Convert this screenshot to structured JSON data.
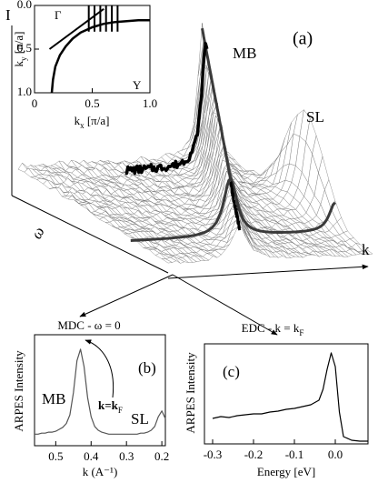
{
  "figure": {
    "panel_a": {
      "label": "(a)",
      "intensity_axis": "I",
      "energy_axis": "ω",
      "momentum_axis": "k",
      "peaks": [
        "MB",
        "SL"
      ]
    }
  },
  "chart_data": [
    {
      "type": "line",
      "x_label": [
        "k",
        "x",
        " [π/a]"
      ],
      "y_label": [
        "k",
        "y",
        " [π/a]"
      ],
      "annotations": [
        "Γ",
        "Y"
      ],
      "xlim": [
        0,
        1
      ],
      "ylim": [
        1,
        0
      ],
      "xticks": [
        0,
        0.5,
        {
          "value": 1,
          "label": "1.0"
        }
      ],
      "yticks": [
        {
          "value": 0,
          "label": "0.0"
        },
        0.5,
        {
          "value": 1,
          "label": "1.0"
        }
      ],
      "color": "#000000",
      "series": [
        {
          "x": [
            0.15,
            0.16,
            0.18,
            0.22,
            0.27,
            0.33,
            0.4,
            0.5,
            0.6,
            0.7,
            0.8,
            0.9,
            1.0
          ],
          "values": [
            1.0,
            0.85,
            0.7,
            0.57,
            0.47,
            0.38,
            0.31,
            0.25,
            0.21,
            0.19,
            0.18,
            0.17,
            0.17
          ]
        },
        {
          "x": [
            0.13,
            0.6
          ],
          "values": [
            0.5,
            0.04
          ]
        },
        {
          "x": [
            0.47,
            0.47
          ],
          "values": [
            0,
            0.3
          ]
        },
        {
          "x": [
            0.52,
            0.52
          ],
          "values": [
            0,
            0.3
          ]
        },
        {
          "x": [
            0.57,
            0.57
          ],
          "values": [
            0,
            0.3
          ]
        },
        {
          "x": [
            0.62,
            0.62
          ],
          "values": [
            0,
            0.3
          ]
        },
        {
          "x": [
            0.67,
            0.67
          ],
          "values": [
            0,
            0.3
          ]
        },
        {
          "x": [
            0.72,
            0.72
          ],
          "values": [
            0,
            0.3
          ]
        }
      ]
    },
    {
      "type": "line",
      "title": "MDC - ω = 0",
      "panel_label": "(b)",
      "x_label": "k (A⁻¹)",
      "y_label": "ARPES Intensity",
      "annotations": [
        "MB",
        "SL"
      ],
      "arrow_label": [
        "k=k",
        "F"
      ],
      "xlim": [
        0.56,
        0.19
      ],
      "ylim": [
        0,
        1.15
      ],
      "xticks": [
        0.5,
        0.4,
        0.3,
        0.2
      ],
      "color": "#555555",
      "series": [
        {
          "x": [
            0.56,
            0.55,
            0.54,
            0.53,
            0.52,
            0.51,
            0.5,
            0.49,
            0.48,
            0.47,
            0.46,
            0.45,
            0.44,
            0.43,
            0.42,
            0.41,
            0.4,
            0.39,
            0.38,
            0.37,
            0.36,
            0.35,
            0.34,
            0.33,
            0.32,
            0.31,
            0.3,
            0.29,
            0.28,
            0.27,
            0.26,
            0.25,
            0.24,
            0.23,
            0.22,
            0.21,
            0.2,
            0.19
          ],
          "values": [
            0.12,
            0.12,
            0.13,
            0.13,
            0.14,
            0.14,
            0.15,
            0.17,
            0.19,
            0.23,
            0.32,
            0.55,
            0.88,
            1.0,
            0.82,
            0.5,
            0.3,
            0.2,
            0.16,
            0.14,
            0.13,
            0.12,
            0.12,
            0.12,
            0.12,
            0.12,
            0.12,
            0.12,
            0.12,
            0.12,
            0.13,
            0.13,
            0.14,
            0.16,
            0.2,
            0.3,
            0.36,
            0.28
          ]
        }
      ]
    },
    {
      "type": "line",
      "title": [
        "EDC - k = k",
        "F"
      ],
      "panel_label": "(c)",
      "x_label": "Energy [eV]",
      "y_label": "ARPES Intensity",
      "xlim": [
        -0.32,
        0.08
      ],
      "ylim": [
        0,
        1.1
      ],
      "xticks": [
        -0.3,
        -0.2,
        -0.1,
        {
          "value": 0,
          "label": "0.0"
        }
      ],
      "color": "#000000",
      "series": [
        {
          "x": [
            -0.3,
            -0.28,
            -0.26,
            -0.24,
            -0.22,
            -0.2,
            -0.18,
            -0.16,
            -0.14,
            -0.12,
            -0.1,
            -0.08,
            -0.06,
            -0.04,
            -0.03,
            -0.02,
            -0.01,
            0,
            0.01,
            0.02,
            0.04,
            0.06,
            0.08
          ],
          "values": [
            0.28,
            0.3,
            0.29,
            0.31,
            0.32,
            0.33,
            0.33,
            0.35,
            0.36,
            0.38,
            0.39,
            0.41,
            0.43,
            0.48,
            0.6,
            0.82,
            1.0,
            0.85,
            0.35,
            0.08,
            0.04,
            0.03,
            0.03
          ]
        }
      ]
    }
  ]
}
